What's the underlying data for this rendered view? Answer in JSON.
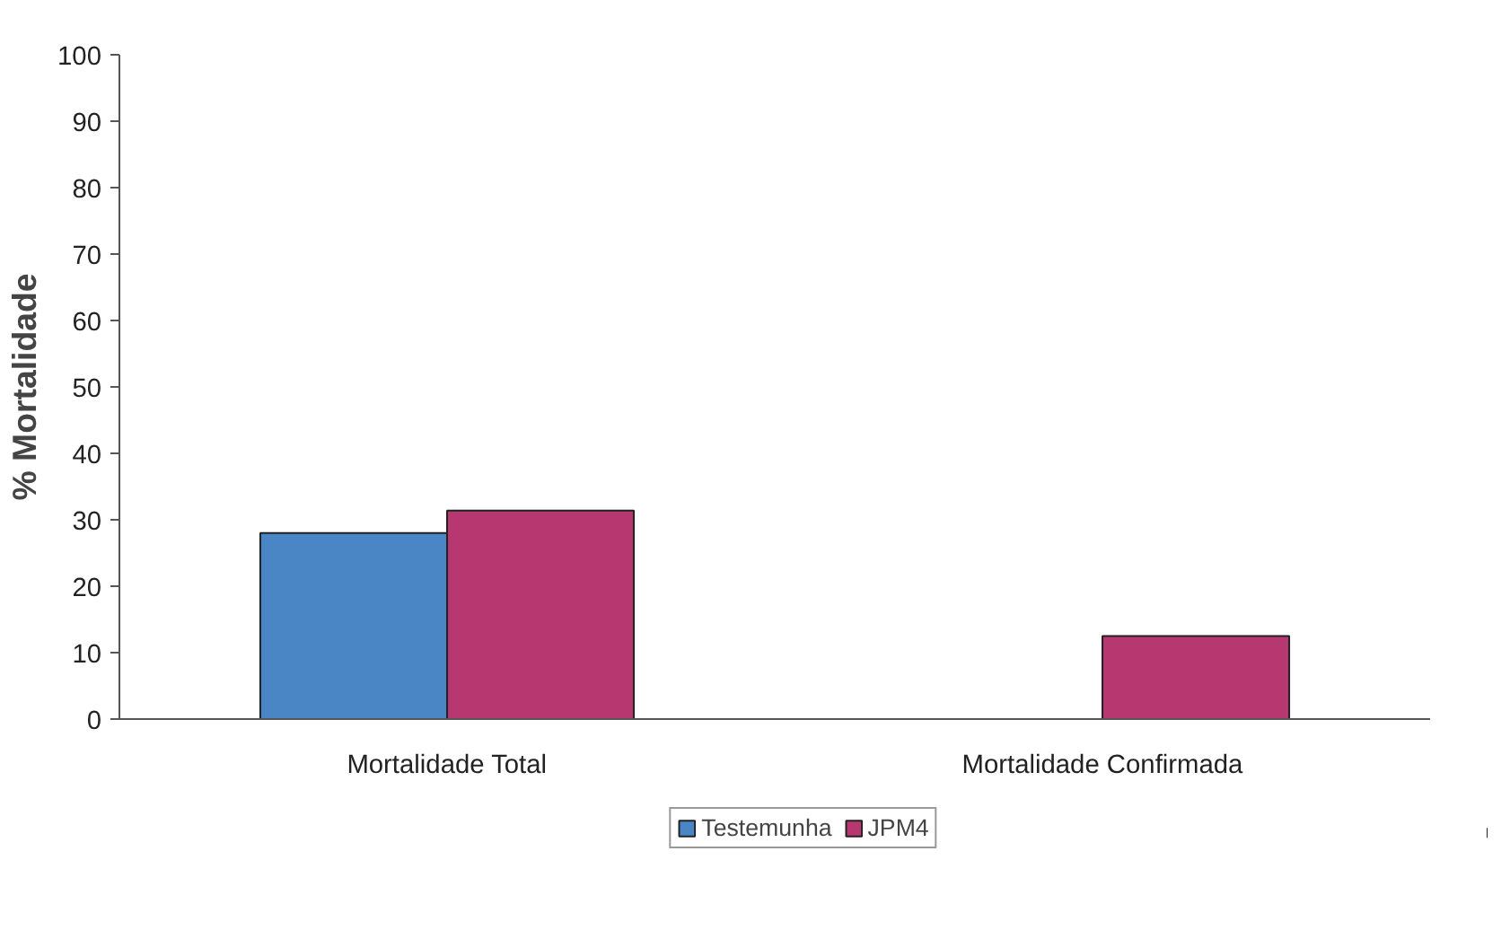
{
  "chart_data": {
    "type": "bar",
    "ylabel": "% Mortalidade",
    "categories": [
      "Mortalidade Total",
      "Mortalidade Confirmada"
    ],
    "series": [
      {
        "name": "Testemunha",
        "color": "#4a86c5",
        "values": [
          28,
          0
        ]
      },
      {
        "name": "JPM4",
        "color": "#b73870",
        "values": [
          31.4,
          12.5
        ]
      }
    ],
    "ylim": [
      0,
      100
    ],
    "yticks": [
      0,
      10,
      20,
      30,
      40,
      50,
      60,
      70,
      80,
      90,
      100
    ],
    "grid": false,
    "legend": "bottom"
  }
}
